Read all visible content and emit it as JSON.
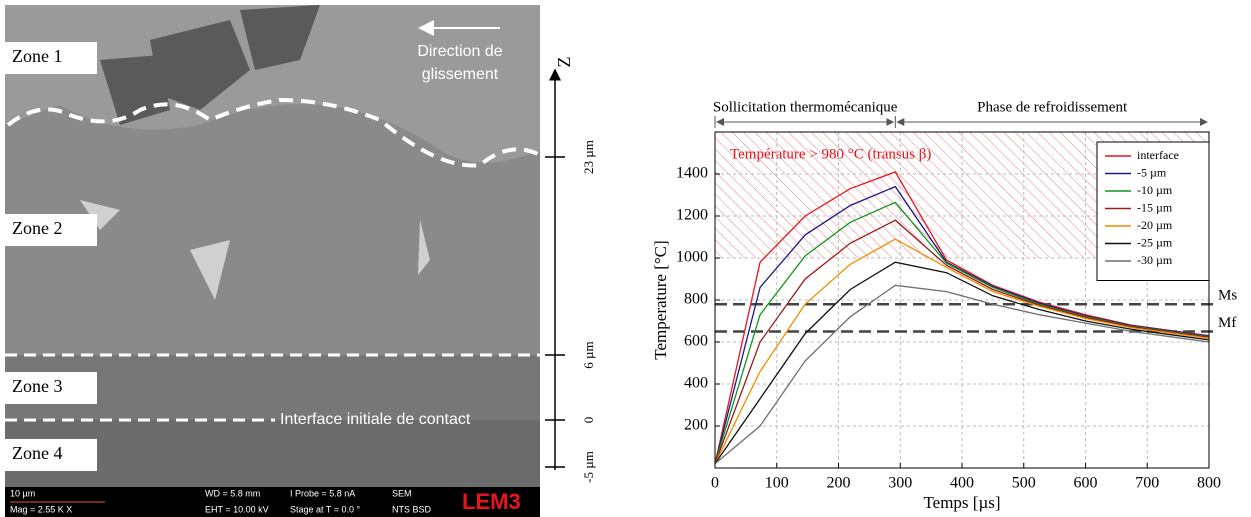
{
  "sem_image": {
    "zones": [
      "Zone 1",
      "Zone 2",
      "Zone 3",
      "Zone 4"
    ],
    "direction_label": [
      "Direction de",
      "glissement"
    ],
    "axis_label": "Z",
    "depth_labels": [
      "23 µm",
      "6 µm",
      "0",
      "-5 µm"
    ],
    "interface_label": "Interface initiale de contact",
    "info_bar": {
      "scale": "10 µm",
      "mag": "Mag = 2.55 K X",
      "wd": "WD = 5.8 mm",
      "probe": "I Probe = 5.8 nA",
      "eht": "EHT = 10.00 kV",
      "stage": "Stage at T = 0.0 °",
      "detector1": "SEM",
      "detector2": "NTS BSD",
      "logo": "LEM3"
    }
  },
  "chart_data": {
    "type": "line",
    "x_label": "Temps [µs]",
    "y_label": "Temperature [°C]",
    "x": [
      0,
      73,
      146,
      219,
      292,
      375,
      450,
      525,
      600,
      675,
      750,
      800
    ],
    "series": [
      {
        "name": "interface",
        "color": "#e8141e",
        "values": [
          20,
          980,
          1200,
          1330,
          1410,
          990,
          870,
          790,
          730,
          680,
          650,
          630
        ]
      },
      {
        "name": "-5 µm",
        "color": "#1a1a8c",
        "values": [
          20,
          860,
          1110,
          1250,
          1340,
          980,
          865,
          785,
          725,
          678,
          648,
          628
        ]
      },
      {
        "name": "-10 µm",
        "color": "#12961e",
        "values": [
          20,
          730,
          1010,
          1170,
          1265,
          975,
          860,
          780,
          722,
          675,
          645,
          625
        ]
      },
      {
        "name": "-15 µm",
        "color": "#9b1a1a",
        "values": [
          20,
          600,
          900,
          1070,
          1180,
          965,
          850,
          775,
          718,
          672,
          642,
          622
        ]
      },
      {
        "name": "-20 µm",
        "color": "#f28c00",
        "values": [
          20,
          460,
          780,
          970,
          1090,
          955,
          840,
          770,
          712,
          668,
          638,
          618
        ]
      },
      {
        "name": "-25 µm",
        "color": "#111111",
        "values": [
          20,
          330,
          640,
          850,
          980,
          930,
          820,
          755,
          700,
          660,
          630,
          610
        ]
      },
      {
        "name": "-30 µm",
        "color": "#6e6e6e",
        "values": [
          20,
          200,
          510,
          720,
          870,
          840,
          780,
          730,
          690,
          650,
          620,
          600
        ]
      }
    ],
    "xlim": [
      0,
      800
    ],
    "xticks": [
      0,
      100,
      200,
      300,
      400,
      500,
      600,
      700,
      800
    ],
    "ylim": [
      0,
      1600
    ],
    "yticks": [
      200,
      400,
      600,
      800,
      1000,
      1200,
      1400
    ],
    "grid": true,
    "legend": "upper right",
    "hatch": {
      "label": "Température > 980 °C (transus β)",
      "from": 1000,
      "color": "#e8141e"
    },
    "reference_lines": [
      {
        "label": "Ms",
        "value": 780
      },
      {
        "label": "Mf",
        "value": 650
      }
    ],
    "phases": [
      {
        "label": "Sollicitation thermomécanique",
        "from": 0,
        "to": 292
      },
      {
        "label": "Phase de refroidissement",
        "from": 292,
        "to": 800
      }
    ]
  }
}
